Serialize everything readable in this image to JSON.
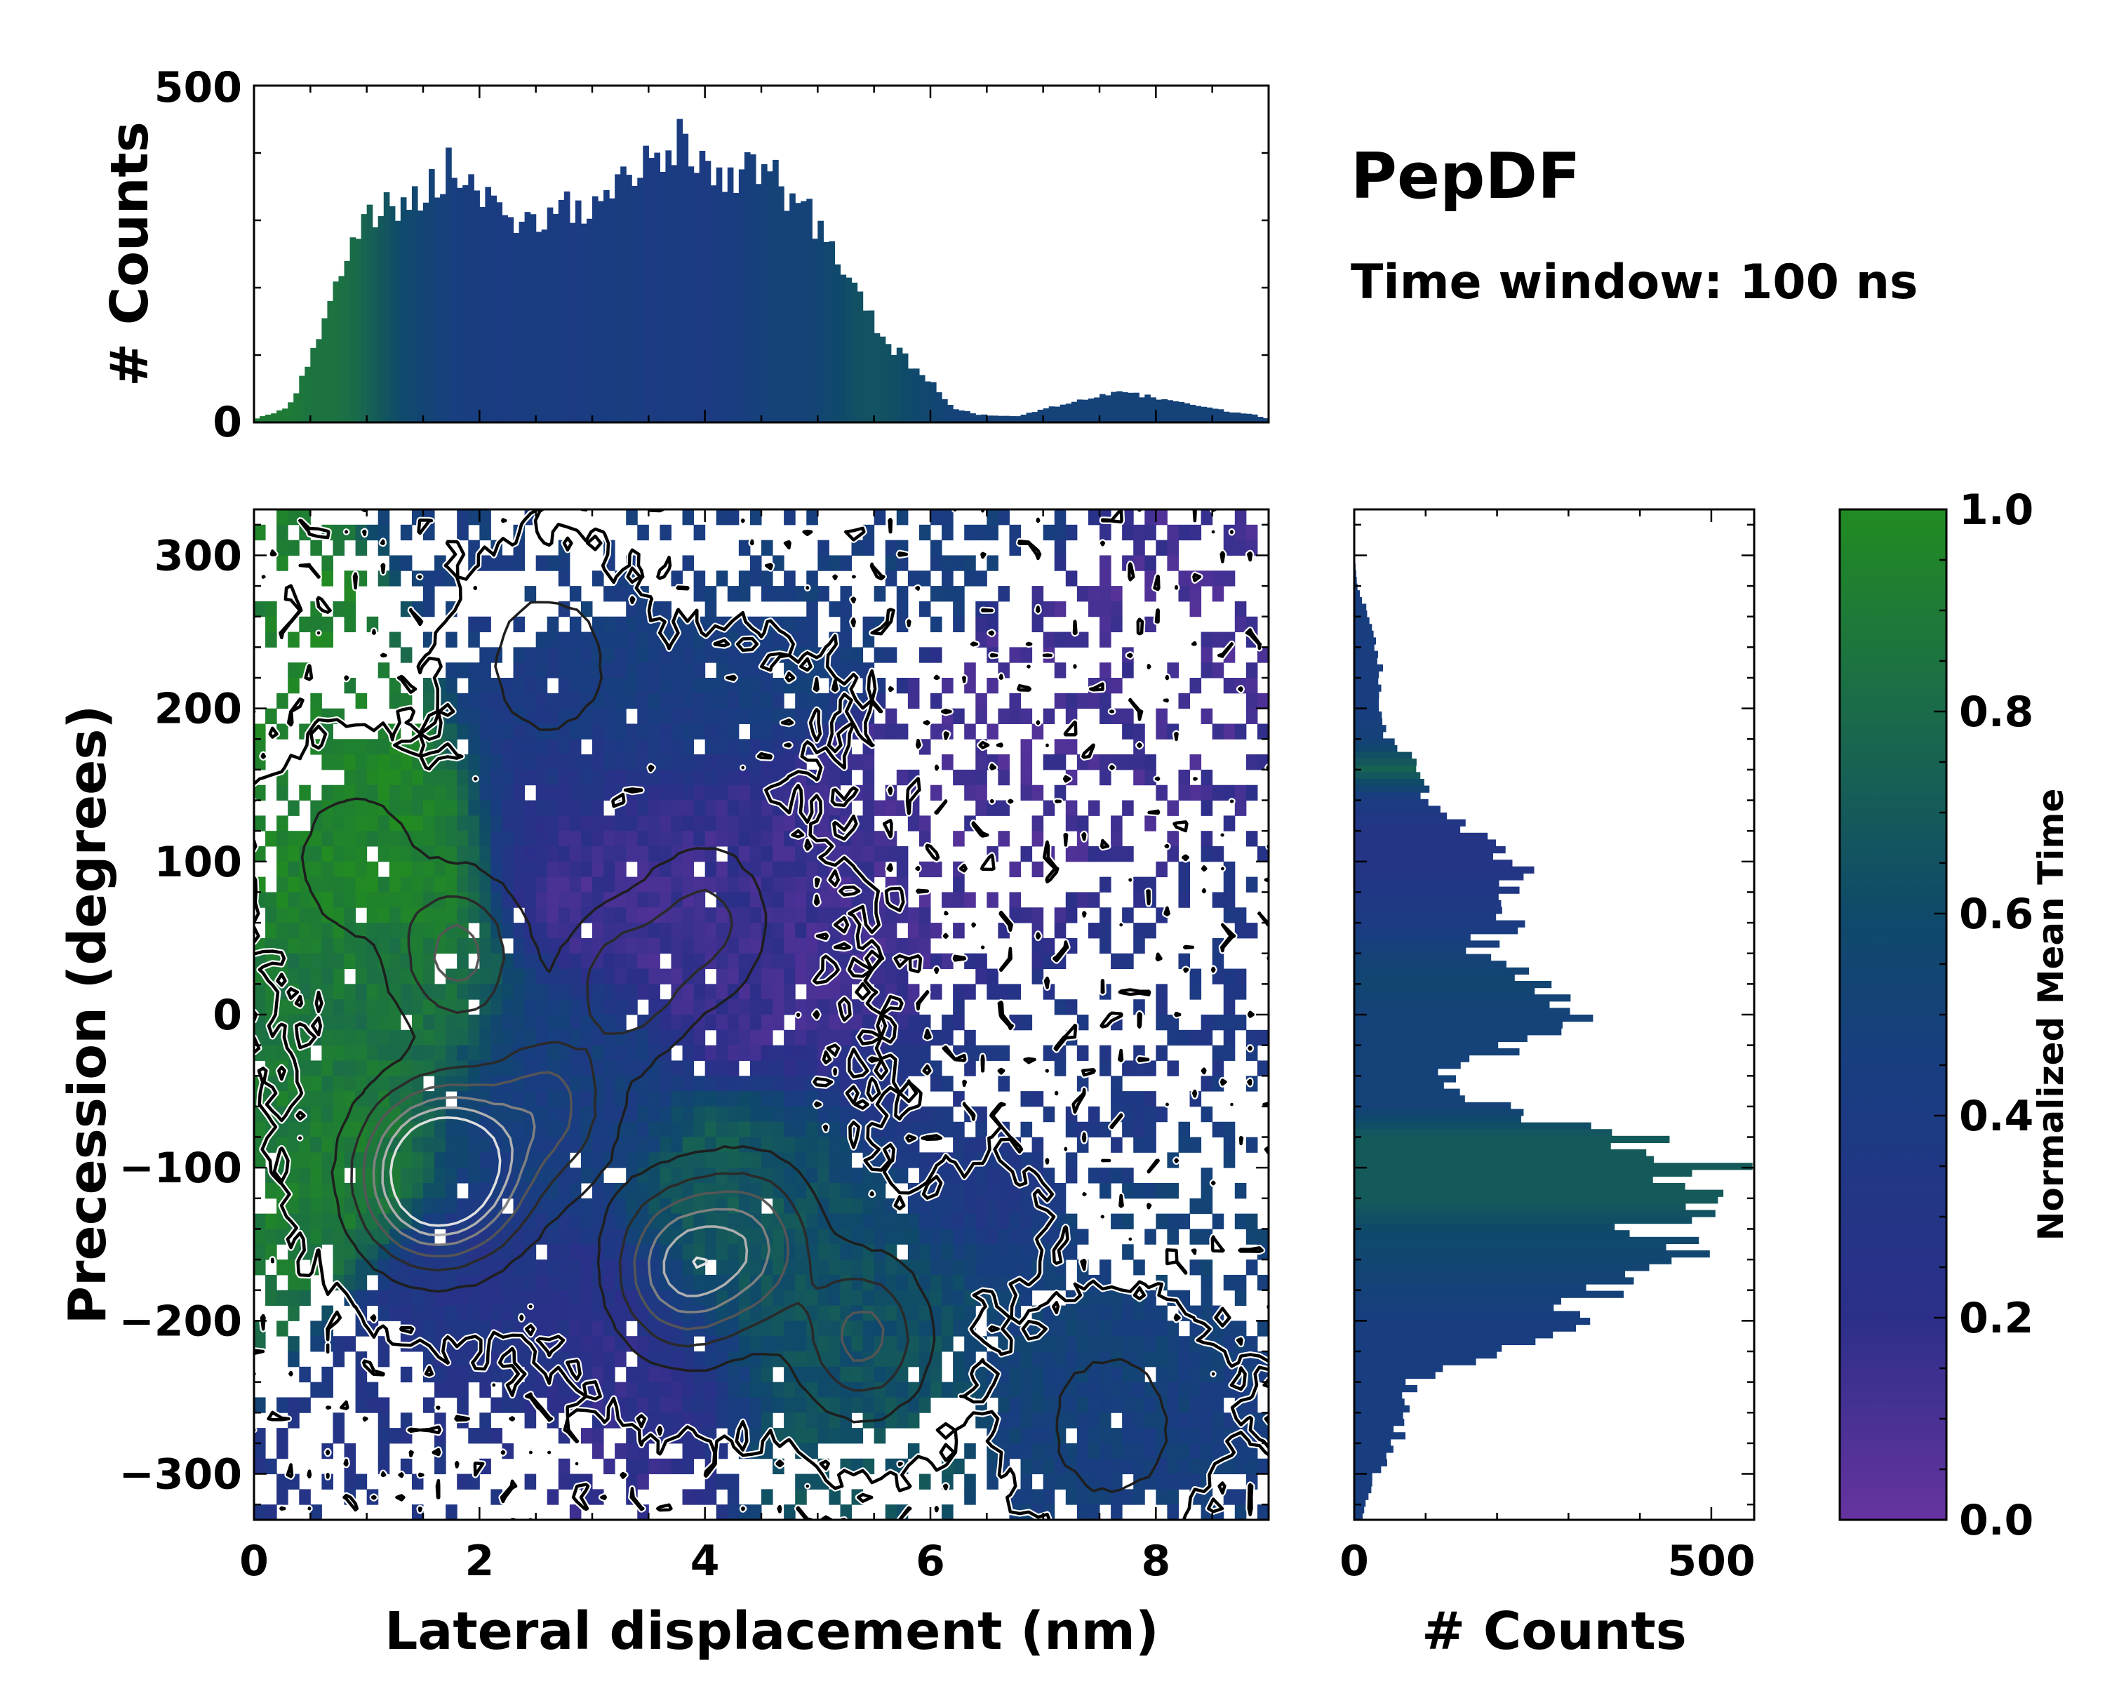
{
  "chart_data": {
    "type": "heatmap",
    "title": "PepDF",
    "subtitle": "Time window: 100 ns",
    "xlabel": "Lateral displacement (nm)",
    "ylabel": "Precession (degrees)",
    "xlim": [
      0,
      9
    ],
    "ylim": [
      -330,
      330
    ],
    "xticks": [
      0,
      2,
      4,
      6,
      8
    ],
    "xtick_labels": [
      "0",
      "2",
      "4",
      "6",
      "8"
    ],
    "yticks": [
      300,
      200,
      100,
      0,
      -100,
      -200,
      -300
    ],
    "ytick_labels": [
      "300",
      "200",
      "100",
      "0",
      "−100",
      "−200",
      "−300"
    ],
    "colorbar": {
      "label": "Normalized Mean Time",
      "range": [
        0,
        1
      ],
      "ticks": [
        1.0,
        0.8,
        0.6,
        0.4,
        0.2,
        0.0
      ],
      "tick_labels": [
        "1.0",
        "0.8",
        "0.6",
        "0.4",
        "0.2",
        "0.0"
      ],
      "colors": [
        "#6633a0",
        "#2c2f8a",
        "#183e80",
        "#0f4a6a",
        "#1a6b4a",
        "#228b22"
      ]
    },
    "regions": [
      {
        "x": 1.0,
        "y": 110,
        "t": 0.95
      },
      {
        "x": 1.2,
        "y": 0,
        "t": 0.85
      },
      {
        "x": 0.6,
        "y": -90,
        "t": 0.9
      },
      {
        "x": 3.2,
        "y": 110,
        "t": 0.12
      },
      {
        "x": 4.5,
        "y": 60,
        "t": 0.15
      },
      {
        "x": 5.5,
        "y": 40,
        "t": 0.12
      },
      {
        "x": 3.0,
        "y": 180,
        "t": 0.4
      },
      {
        "x": 3.5,
        "y": 240,
        "t": 0.45
      },
      {
        "x": 2.5,
        "y": -60,
        "t": 0.45
      },
      {
        "x": 2.0,
        "y": -200,
        "t": 0.3
      },
      {
        "x": 3.5,
        "y": -220,
        "t": 0.18
      },
      {
        "x": 4.3,
        "y": -160,
        "t": 0.75
      },
      {
        "x": 5.0,
        "y": -150,
        "t": 0.6
      },
      {
        "x": 5.2,
        "y": -230,
        "t": 0.65
      },
      {
        "x": 7.5,
        "y": -230,
        "t": 0.5
      },
      {
        "x": 8.2,
        "y": -290,
        "t": 0.45
      },
      {
        "x": 6.2,
        "y": -60,
        "t": 0.35
      }
    ],
    "density_peaks": [
      {
        "x": 1.5,
        "y": -105,
        "amp": 10
      },
      {
        "x": 1.9,
        "y": -100,
        "amp": 8
      },
      {
        "x": 3.8,
        "y": -165,
        "amp": 7
      },
      {
        "x": 4.4,
        "y": -150,
        "amp": 5
      },
      {
        "x": 5.4,
        "y": -210,
        "amp": 4
      },
      {
        "x": 1.8,
        "y": 40,
        "amp": 4
      },
      {
        "x": 2.6,
        "y": -60,
        "amp": 4
      },
      {
        "x": 3.3,
        "y": 20,
        "amp": 3
      },
      {
        "x": 4.0,
        "y": 60,
        "amp": 2.5
      },
      {
        "x": 2.6,
        "y": 230,
        "amp": 2
      },
      {
        "x": 7.6,
        "y": -270,
        "amp": 2
      },
      {
        "x": 0.9,
        "y": 100,
        "amp": 2
      }
    ],
    "top_histogram": {
      "ylabel": "# Counts",
      "ylim": [
        0,
        500
      ],
      "yticks": [
        0,
        500
      ],
      "ytick_labels": [
        "0",
        "500"
      ],
      "x": [
        0.0,
        0.3,
        0.5,
        0.7,
        0.9,
        1.0,
        1.3,
        1.6,
        1.8,
        2.0,
        2.2,
        2.5,
        2.8,
        3.0,
        3.3,
        3.5,
        3.7,
        4.0,
        4.3,
        4.6,
        4.9,
        5.2,
        5.4,
        5.6,
        5.8,
        6.0,
        6.2,
        6.5,
        6.8,
        7.0,
        7.3,
        7.6,
        7.9,
        8.2,
        8.5,
        8.7,
        8.9,
        9.0
      ],
      "counts": [
        5,
        20,
        90,
        200,
        280,
        300,
        320,
        360,
        380,
        340,
        300,
        300,
        320,
        310,
        360,
        400,
        420,
        380,
        370,
        360,
        310,
        240,
        180,
        120,
        90,
        60,
        20,
        10,
        10,
        20,
        30,
        45,
        40,
        30,
        20,
        15,
        10,
        5
      ],
      "time": [
        0.9,
        0.9,
        0.85,
        0.85,
        0.8,
        0.75,
        0.6,
        0.5,
        0.45,
        0.45,
        0.4,
        0.45,
        0.4,
        0.42,
        0.45,
        0.4,
        0.42,
        0.4,
        0.45,
        0.5,
        0.5,
        0.6,
        0.65,
        0.65,
        0.6,
        0.55,
        0.5,
        0.5,
        0.5,
        0.5,
        0.5,
        0.5,
        0.5,
        0.5,
        0.5,
        0.5,
        0.5,
        0.5
      ]
    },
    "right_histogram": {
      "xlabel": "# Counts",
      "xlim": [
        0,
        560
      ],
      "xticks": [
        0,
        500
      ],
      "xtick_labels": [
        "0",
        "500"
      ],
      "y": [
        -330,
        -300,
        -280,
        -260,
        -240,
        -220,
        -200,
        -180,
        -160,
        -140,
        -120,
        -100,
        -80,
        -60,
        -40,
        -20,
        0,
        20,
        40,
        60,
        80,
        100,
        120,
        140,
        160,
        180,
        200,
        220,
        240,
        260,
        280,
        300,
        330
      ],
      "counts": [
        10,
        30,
        60,
        70,
        80,
        200,
        320,
        330,
        440,
        420,
        460,
        500,
        380,
        200,
        120,
        230,
        300,
        250,
        170,
        210,
        220,
        230,
        160,
        100,
        90,
        50,
        30,
        40,
        30,
        20,
        5,
        0,
        0
      ],
      "time": [
        0.45,
        0.45,
        0.45,
        0.45,
        0.45,
        0.45,
        0.45,
        0.5,
        0.55,
        0.6,
        0.7,
        0.7,
        0.7,
        0.5,
        0.5,
        0.5,
        0.5,
        0.55,
        0.5,
        0.4,
        0.35,
        0.3,
        0.3,
        0.4,
        0.75,
        0.5,
        0.45,
        0.45,
        0.45,
        0.45,
        0.45,
        0.45,
        0.45
      ]
    }
  }
}
